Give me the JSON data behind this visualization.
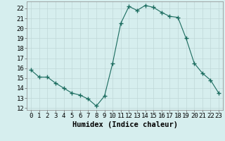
{
  "x": [
    0,
    1,
    2,
    3,
    4,
    5,
    6,
    7,
    8,
    9,
    10,
    11,
    12,
    13,
    14,
    15,
    16,
    17,
    18,
    19,
    20,
    21,
    22,
    23
  ],
  "y": [
    15.8,
    15.1,
    15.1,
    14.5,
    14.0,
    13.5,
    13.3,
    12.9,
    12.2,
    13.2,
    16.5,
    20.5,
    22.2,
    21.8,
    22.3,
    22.1,
    21.6,
    21.2,
    21.1,
    19.0,
    16.5,
    15.5,
    14.8,
    13.5
  ],
  "line_color": "#1a6b5e",
  "marker_color": "#1a6b5e",
  "bg_color": "#d6eeee",
  "grid_color": "#c0d8d8",
  "xlabel": "Humidex (Indice chaleur)",
  "ylim": [
    11.8,
    22.7
  ],
  "xlim": [
    -0.5,
    23.5
  ],
  "yticks": [
    12,
    13,
    14,
    15,
    16,
    17,
    18,
    19,
    20,
    21,
    22
  ],
  "xticks": [
    0,
    1,
    2,
    3,
    4,
    5,
    6,
    7,
    8,
    9,
    10,
    11,
    12,
    13,
    14,
    15,
    16,
    17,
    18,
    19,
    20,
    21,
    22,
    23
  ],
  "xtick_labels": [
    "0",
    "1",
    "2",
    "3",
    "4",
    "5",
    "6",
    "7",
    "8",
    "9",
    "10",
    "11",
    "12",
    "13",
    "14",
    "15",
    "16",
    "17",
    "18",
    "19",
    "20",
    "21",
    "22",
    "23"
  ],
  "label_fontsize": 7.5,
  "tick_fontsize": 6.5
}
